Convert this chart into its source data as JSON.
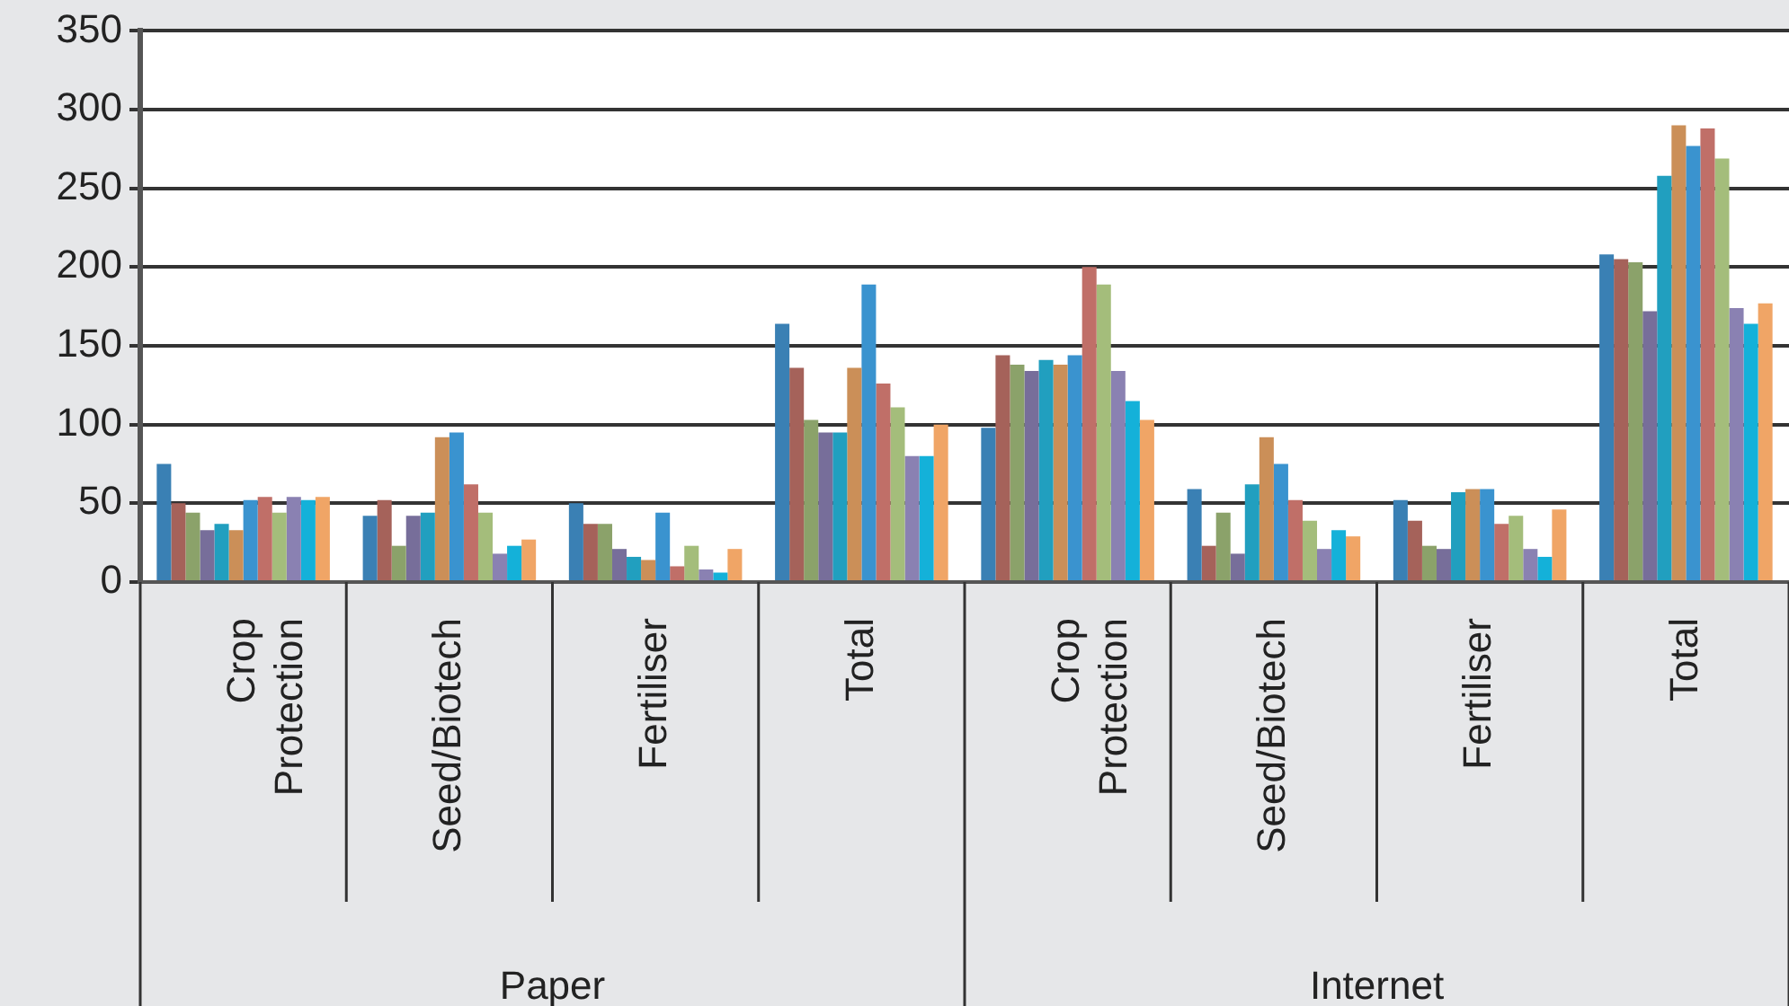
{
  "chart_data": {
    "type": "bar",
    "categories": [
      "Crop Protection",
      "Seed/Biotech",
      "Fertiliser",
      "Total",
      "Crop Protection",
      "Seed/Biotech",
      "Fertiliser",
      "Total"
    ],
    "series": [
      {
        "color": "#3a80b4",
        "values": [
          75,
          42,
          50,
          164,
          98,
          59,
          52,
          208
        ]
      },
      {
        "color": "#a5625a",
        "values": [
          50,
          52,
          37,
          136,
          144,
          23,
          39,
          205
        ]
      },
      {
        "color": "#8ba26a",
        "values": [
          44,
          23,
          37,
          103,
          138,
          44,
          23,
          203
        ]
      },
      {
        "color": "#776e9a",
        "values": [
          33,
          42,
          21,
          95,
          134,
          18,
          21,
          172
        ]
      },
      {
        "color": "#219fbf",
        "values": [
          37,
          44,
          16,
          95,
          141,
          62,
          57,
          258
        ]
      },
      {
        "color": "#cb8f58",
        "values": [
          33,
          92,
          14,
          136,
          138,
          92,
          59,
          290
        ]
      },
      {
        "color": "#3a93cf",
        "values": [
          52,
          95,
          44,
          189,
          144,
          75,
          59,
          277
        ]
      },
      {
        "color": "#c06f68",
        "values": [
          54,
          62,
          10,
          126,
          200,
          52,
          37,
          288
        ]
      },
      {
        "color": "#a4bd7b",
        "values": [
          44,
          44,
          23,
          111,
          189,
          39,
          42,
          269
        ]
      },
      {
        "color": "#8a81b2",
        "values": [
          54,
          18,
          8,
          80,
          134,
          21,
          21,
          174
        ]
      },
      {
        "color": "#14b1d9",
        "values": [
          52,
          23,
          6,
          80,
          115,
          33,
          16,
          164
        ]
      },
      {
        "color": "#f0a566",
        "values": [
          54,
          27,
          21,
          100,
          103,
          29,
          46,
          177
        ]
      }
    ],
    "ylim": [
      0,
      350
    ],
    "yticks": [
      0,
      50,
      100,
      150,
      200,
      250,
      300,
      350
    ],
    "grid": "y",
    "legend": false,
    "annotations": [
      "Paper",
      "Internet"
    ]
  }
}
